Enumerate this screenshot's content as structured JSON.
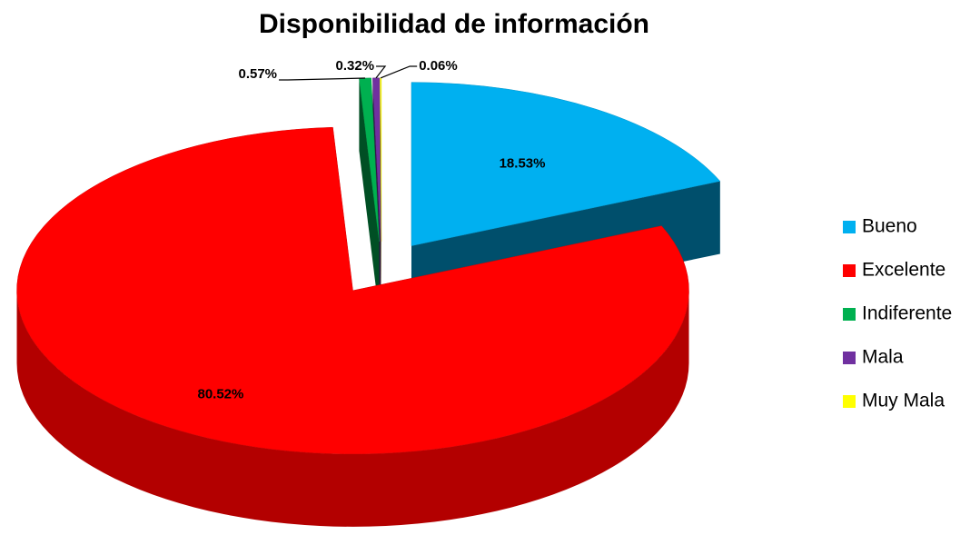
{
  "chart_data": {
    "type": "pie",
    "title": "Disponibilidad de información",
    "categories": [
      "Bueno",
      "Excelente",
      "Indiferente",
      "Mala",
      "Muy Mala"
    ],
    "values": [
      18.53,
      80.52,
      0.57,
      0.32,
      0.06
    ],
    "value_labels": [
      "18.53%",
      "80.52%",
      "0.57%",
      "0.32%",
      "0.06%"
    ],
    "colors": [
      "#00b0f0",
      "#ff0000",
      "#00b050",
      "#7030a0",
      "#ffff00"
    ],
    "legend": "right"
  }
}
